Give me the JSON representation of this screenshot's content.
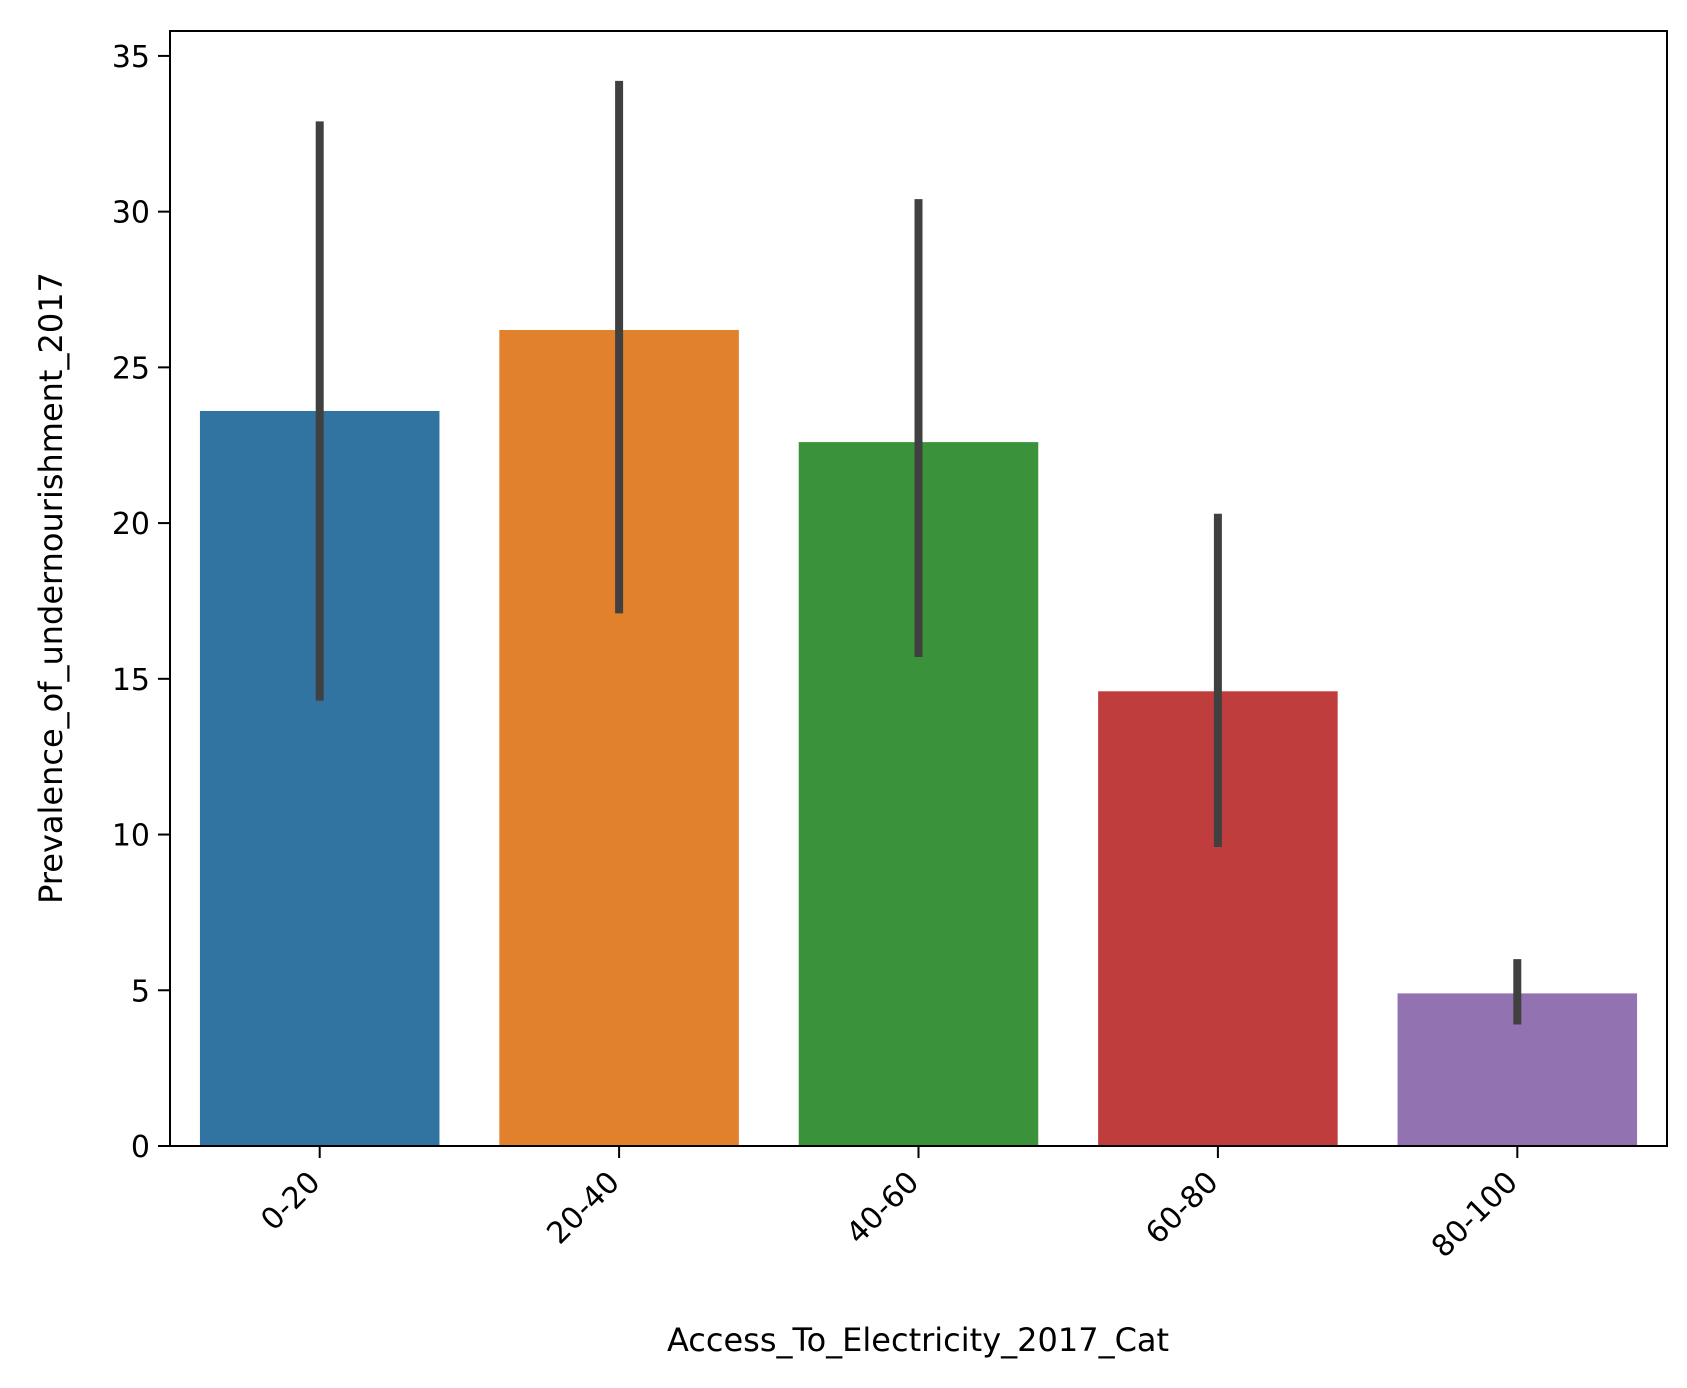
{
  "chart_data": {
    "type": "bar",
    "title": "",
    "xlabel": "Access_To_Electricity_2017_Cat",
    "ylabel": "Prevalence_of_undernourishment_2017",
    "categories": [
      "0-20",
      "20-40",
      "40-60",
      "60-80",
      "80-100"
    ],
    "values": [
      23.6,
      26.2,
      22.6,
      14.6,
      4.9
    ],
    "error_low": [
      14.3,
      17.1,
      15.7,
      9.6,
      3.9
    ],
    "error_high": [
      32.9,
      34.2,
      30.4,
      20.3,
      6.0
    ],
    "bar_colors": [
      "#3274a1",
      "#e1812c",
      "#3a923a",
      "#c03d3e",
      "#9372b2"
    ],
    "error_color": "#404040",
    "ylim": [
      0,
      35.8
    ],
    "yticks": [
      "0",
      "5",
      "10",
      "15",
      "20",
      "25",
      "30",
      "35"
    ],
    "grid": false,
    "legend": "none"
  }
}
